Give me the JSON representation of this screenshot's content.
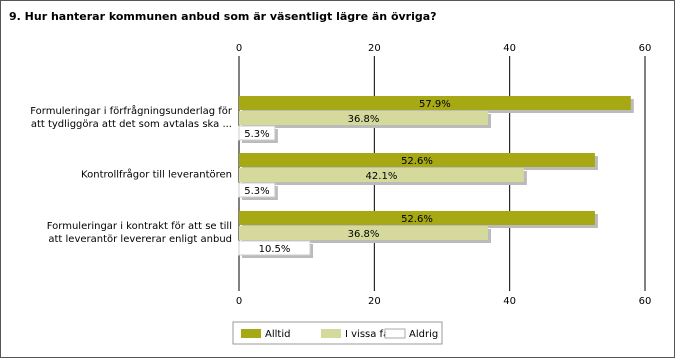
{
  "chart_data": {
    "type": "barh",
    "title": "9. Hur hanterar kommunen anbud som är väsentligt lägre än övriga?",
    "categories": [
      "Formuleringar i förfrågningsunderlag för\natt tydliggöra att det som avtalas ska ...",
      "Kontrollfrågor till leverantören",
      "Formuleringar i kontrakt för att se till\natt leverantör levererar enligt anbud"
    ],
    "series": [
      {
        "name": "Alltid",
        "color": "#a6a814",
        "values": [
          57.9,
          52.6,
          52.6
        ],
        "value_labels": [
          "57.9%",
          "52.6%",
          "52.6%"
        ]
      },
      {
        "name": "I vissa fall",
        "color": "#d5da9c",
        "values": [
          36.8,
          42.1,
          36.8
        ],
        "value_labels": [
          "36.8%",
          "42.1%",
          "36.8%"
        ]
      },
      {
        "name": "Aldrig",
        "color": "#ffffff",
        "values": [
          5.3,
          5.3,
          10.5
        ],
        "value_labels": [
          "5.3%",
          "5.3%",
          "10.5%"
        ]
      }
    ],
    "xlim": [
      0,
      60
    ],
    "xticks": [
      0,
      20,
      40,
      60
    ],
    "grid": true
  }
}
